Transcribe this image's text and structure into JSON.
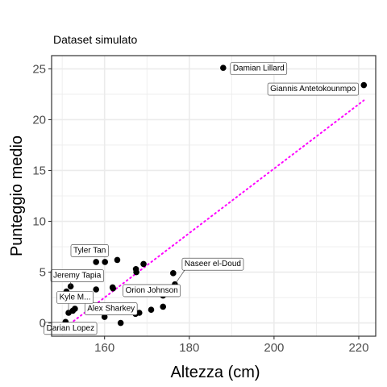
{
  "chart_data": {
    "type": "scatter",
    "title": "Dataset simulato",
    "xlabel": "Altezza (cm)",
    "ylabel": "Punteggio medio",
    "xlim": [
      147.5,
      224
    ],
    "ylim": [
      -1.3,
      26.3
    ],
    "xticks": [
      160,
      180,
      200,
      220
    ],
    "yticks": [
      0,
      5,
      10,
      15,
      20,
      25
    ],
    "grid": true,
    "points": [
      {
        "x": 188.0,
        "y": 25.1,
        "label": "Damian Lillard"
      },
      {
        "x": 221.2,
        "y": 23.4,
        "label": "Giannis Antetokounmpo"
      },
      {
        "x": 176.6,
        "y": 3.8,
        "label": "Naseer el-Doud"
      },
      {
        "x": 158.0,
        "y": 6.0,
        "label": "Tyler Tan"
      },
      {
        "x": 152.0,
        "y": 3.6,
        "label": "Jeremy Tapia"
      },
      {
        "x": 160.0,
        "y": 0.6,
        "label": "Alex Sharkey"
      },
      {
        "x": 151.5,
        "y": 1.0,
        "label": "Kyle M..."
      },
      {
        "x": 161.9,
        "y": 3.5,
        "label": "Orion Johnson"
      },
      {
        "x": 150.8,
        "y": 0.1,
        "label": "Darian Lopez"
      },
      {
        "x": 160.1,
        "y": 6.0,
        "label": ""
      },
      {
        "x": 163.0,
        "y": 6.2,
        "label": ""
      },
      {
        "x": 169.2,
        "y": 5.8,
        "label": ""
      },
      {
        "x": 167.4,
        "y": 5.3,
        "label": ""
      },
      {
        "x": 167.5,
        "y": 5.0,
        "label": ""
      },
      {
        "x": 176.2,
        "y": 4.9,
        "label": ""
      },
      {
        "x": 162.0,
        "y": 3.4,
        "label": ""
      },
      {
        "x": 158.0,
        "y": 3.3,
        "label": ""
      },
      {
        "x": 151.0,
        "y": 3.1,
        "label": ""
      },
      {
        "x": 152.5,
        "y": 1.2,
        "label": ""
      },
      {
        "x": 153.0,
        "y": 1.4,
        "label": ""
      },
      {
        "x": 173.8,
        "y": 2.7,
        "label": ""
      },
      {
        "x": 173.8,
        "y": 1.6,
        "label": ""
      },
      {
        "x": 171.0,
        "y": 1.3,
        "label": ""
      },
      {
        "x": 167.3,
        "y": 0.9,
        "label": ""
      },
      {
        "x": 168.2,
        "y": 1.0,
        "label": ""
      },
      {
        "x": 163.8,
        "y": 0.0,
        "label": ""
      }
    ],
    "trendline": {
      "x": [
        150.2,
        221.2
      ],
      "y": [
        -0.6,
        21.9
      ],
      "color": "#ff00ff",
      "style": "dotted"
    },
    "colors": {
      "point": "#000000",
      "grid": "#ebebeb",
      "border": "#333333"
    }
  }
}
